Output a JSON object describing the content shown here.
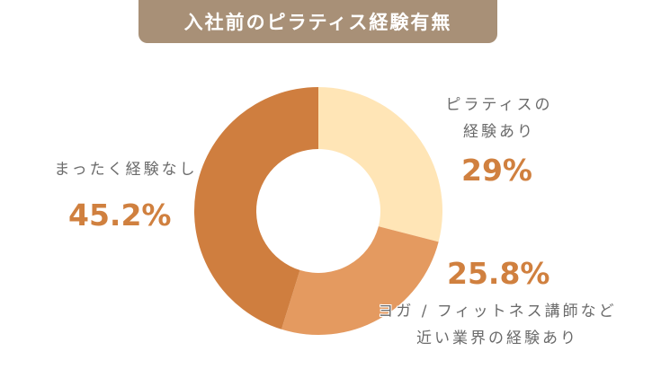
{
  "title": "入社前のピラティス経験有無",
  "chart_data": {
    "type": "pie",
    "variant": "donut",
    "title": "入社前のピラティス経験有無",
    "start_angle": "12 o'clock",
    "direction": "clockwise",
    "slices": [
      {
        "label": "ピラティスの経験あり",
        "label_lines": [
          "ピラティスの",
          "経験あり"
        ],
        "value": 29,
        "display": "29%",
        "color": "#ffe5b6"
      },
      {
        "label": "ヨガ / フィットネス講師など近い業界の経験あり",
        "label_lines": [
          "ヨガ / フィットネス講師など",
          "近い業界の経験あり"
        ],
        "value": 25.8,
        "display": "25.8%",
        "color": "#e49a60"
      },
      {
        "label": "まったく経験なし",
        "label_lines": [
          "まったく経験なし"
        ],
        "value": 45.2,
        "display": "45.2%",
        "color": "#cf7e3f"
      }
    ],
    "legend": "none (direct labels)"
  },
  "colors": {
    "title_bg": "#a89077",
    "title_text": "#ffffff",
    "label_text": "#6b6b6b",
    "percent_text": "#d0803f"
  }
}
